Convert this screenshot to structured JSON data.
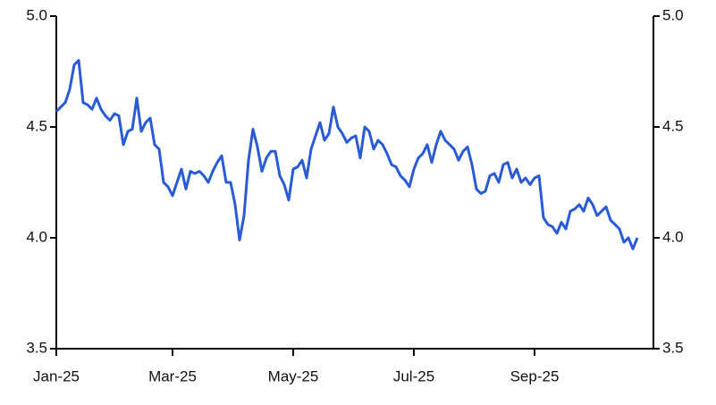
{
  "chart_data": {
    "type": "line",
    "categories": [
      "Jan-25",
      null,
      null,
      null,
      null,
      null,
      null,
      null,
      null,
      null,
      null,
      null,
      null,
      null,
      null,
      null,
      null,
      null,
      null,
      null,
      null,
      null,
      null,
      null,
      null,
      null,
      "Mar-25",
      null,
      null,
      null,
      null,
      null,
      null,
      null,
      null,
      null,
      null,
      null,
      null,
      null,
      null,
      null,
      null,
      null,
      null,
      null,
      null,
      null,
      null,
      null,
      null,
      null,
      null,
      "May-25",
      null,
      null,
      null,
      null,
      null,
      null,
      null,
      null,
      null,
      null,
      null,
      null,
      null,
      null,
      null,
      null,
      null,
      null,
      null,
      null,
      null,
      null,
      null,
      null,
      null,
      null,
      "Jul-25",
      null,
      null,
      null,
      null,
      null,
      null,
      null,
      null,
      null,
      null,
      null,
      null,
      null,
      null,
      null,
      null,
      null,
      null,
      null,
      null,
      null,
      null,
      null,
      null,
      null,
      null,
      "Sep-25",
      null,
      null,
      null,
      null,
      null,
      null,
      null,
      null,
      null,
      null,
      null,
      null,
      null,
      null,
      null,
      null,
      null,
      null,
      null,
      null,
      null,
      null,
      null
    ],
    "values": [
      4.57,
      4.59,
      4.61,
      4.67,
      4.78,
      4.8,
      4.61,
      4.6,
      4.58,
      4.63,
      4.58,
      4.55,
      4.53,
      4.56,
      4.55,
      4.42,
      4.48,
      4.49,
      4.63,
      4.48,
      4.52,
      4.54,
      4.42,
      4.4,
      4.25,
      4.23,
      4.19,
      4.25,
      4.31,
      4.22,
      4.3,
      4.29,
      4.3,
      4.28,
      4.25,
      4.3,
      4.34,
      4.37,
      4.25,
      4.25,
      4.15,
      3.99,
      4.1,
      4.35,
      4.49,
      4.41,
      4.3,
      4.36,
      4.39,
      4.39,
      4.28,
      4.24,
      4.17,
      4.31,
      4.32,
      4.35,
      4.27,
      4.4,
      4.46,
      4.52,
      4.44,
      4.47,
      4.59,
      4.5,
      4.47,
      4.43,
      4.45,
      4.46,
      4.36,
      4.5,
      4.48,
      4.4,
      4.44,
      4.42,
      4.38,
      4.33,
      4.32,
      4.28,
      4.26,
      4.23,
      4.31,
      4.36,
      4.38,
      4.42,
      4.34,
      4.42,
      4.48,
      4.44,
      4.42,
      4.4,
      4.35,
      4.39,
      4.41,
      4.33,
      4.22,
      4.2,
      4.21,
      4.28,
      4.29,
      4.25,
      4.33,
      4.34,
      4.27,
      4.31,
      4.25,
      4.27,
      4.24,
      4.27,
      4.28,
      4.09,
      4.06,
      4.05,
      4.02,
      4.07,
      4.04,
      4.12,
      4.13,
      4.15,
      4.12,
      4.18,
      4.15,
      4.1,
      4.12,
      4.14,
      4.08,
      4.06,
      4.04,
      3.98,
      4.0,
      3.95,
      4.0
    ],
    "color": "#2a5bd7",
    "ylim": [
      3.5,
      5.0
    ],
    "yticks": [
      {
        "value": 3.5,
        "label": "3.5"
      },
      {
        "value": 4.0,
        "label": "4.0"
      },
      {
        "value": 4.5,
        "label": "4.5"
      },
      {
        "value": 5.0,
        "label": "5.0"
      }
    ],
    "y2lim": [
      3.5,
      5.0
    ],
    "y2ticks": [
      {
        "value": 3.5,
        "label": "3.5"
      },
      {
        "value": 4.0,
        "label": "4.0"
      },
      {
        "value": 4.5,
        "label": "4.5"
      },
      {
        "value": 5.0,
        "label": "5.0"
      }
    ]
  }
}
